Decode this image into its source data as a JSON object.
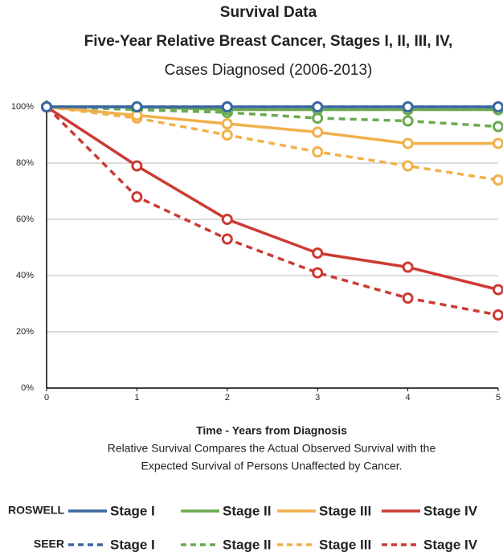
{
  "chart_data": {
    "type": "line",
    "title": "Survival Data",
    "subtitle": "Five-Year Relative Breast Cancer, Stages I, II, III, IV,",
    "subtitle2": "Cases Diagnosed  (2006-2013)",
    "x_label": "Time - Years from Diagnosis",
    "notes": [
      "Relative Survival Compares the Actual Observed Survival with the",
      "Expected Survival of Persons Unaffected by Cancer."
    ],
    "x": [
      0,
      1,
      2,
      3,
      4,
      5
    ],
    "xlim": [
      0,
      5
    ],
    "xticks": [
      0,
      1,
      2,
      3,
      4,
      5
    ],
    "ylim": [
      0,
      100
    ],
    "yticks": [
      {
        "value": 0,
        "label": "0%"
      },
      {
        "value": 20,
        "label": "20%"
      },
      {
        "value": 40,
        "label": "40%"
      },
      {
        "value": 60,
        "label": "60%"
      },
      {
        "value": 80,
        "label": "80%"
      },
      {
        "value": 100,
        "label": "100%"
      }
    ],
    "grid": true,
    "legend_rows": [
      "ROSWELL",
      "SEER"
    ],
    "series": [
      {
        "name": "Stage I",
        "color": "#3b67a0",
        "dashed": false,
        "values": [
          100,
          100,
          100,
          100,
          100,
          100
        ]
      },
      {
        "name": "Stage II",
        "color": "#6aaa4f",
        "dashed": false,
        "values": [
          100,
          100,
          99,
          99,
          99,
          99
        ]
      },
      {
        "name": "Stage III",
        "color": "#f2b04a",
        "dashed": false,
        "values": [
          100,
          97,
          94,
          91,
          87,
          87
        ]
      },
      {
        "name": "Stage IV",
        "color": "#cc3b33",
        "dashed": false,
        "values": [
          100,
          79,
          60,
          48,
          43,
          35
        ]
      },
      {
        "name": "Stage I",
        "color": "#3b67a0",
        "dashed": true,
        "values": [
          100,
          100,
          100,
          100,
          100,
          100
        ]
      },
      {
        "name": "Stage II",
        "color": "#6aaa4f",
        "dashed": true,
        "values": [
          100,
          99,
          98,
          96,
          95,
          93
        ]
      },
      {
        "name": "Stage III",
        "color": "#f2b04a",
        "dashed": true,
        "values": [
          100,
          96,
          90,
          84,
          79,
          74
        ]
      },
      {
        "name": "Stage IV",
        "color": "#cc3b33",
        "dashed": true,
        "values": [
          100,
          68,
          53,
          41,
          32,
          26
        ]
      }
    ]
  }
}
